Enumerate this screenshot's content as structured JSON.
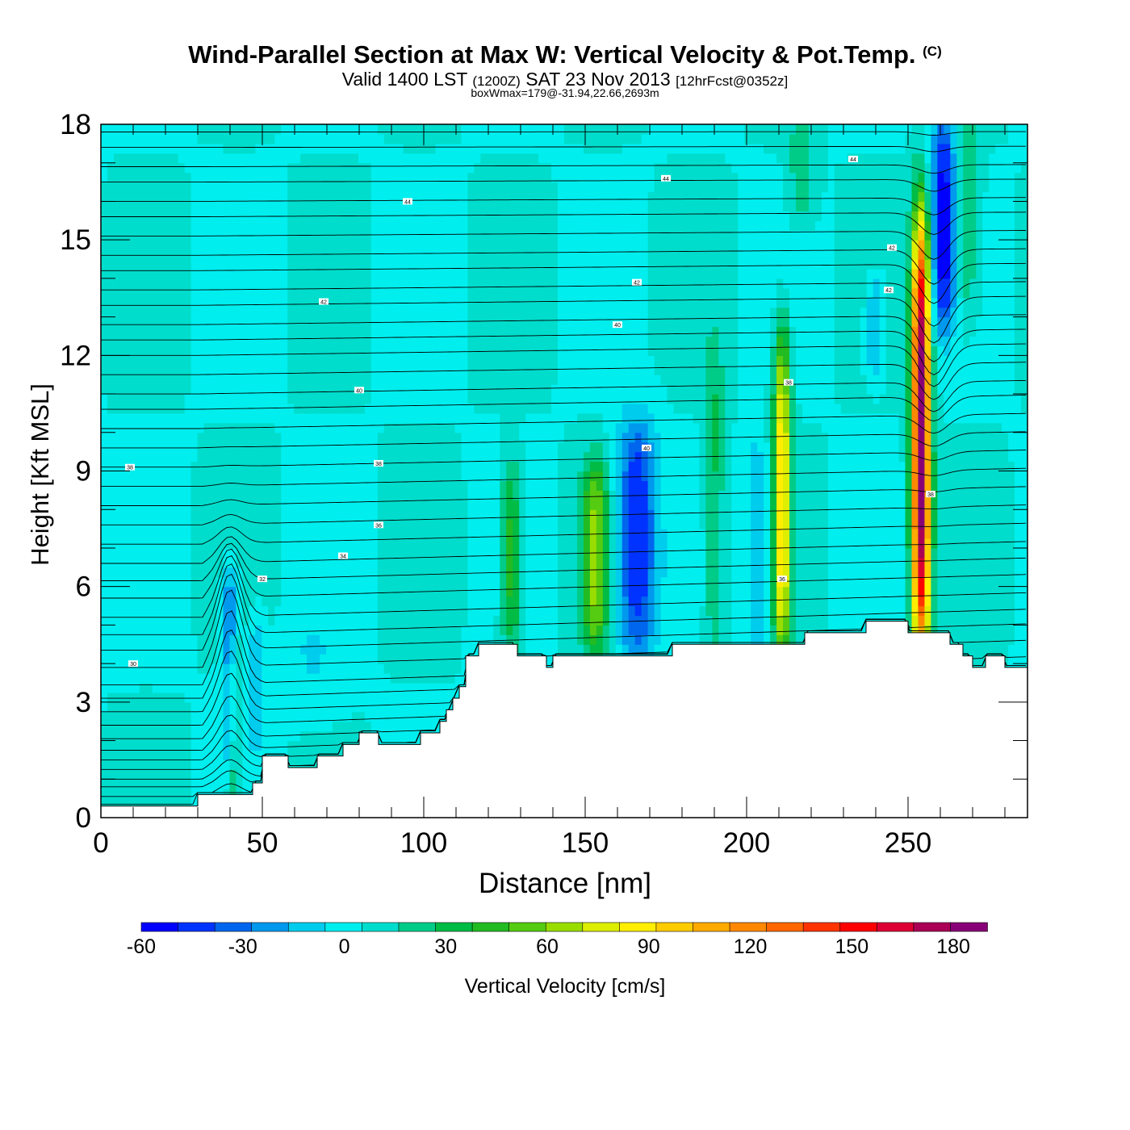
{
  "title": {
    "main": "Wind-Parallel Section at Max W: Vertical Velocity & Pot.Temp.",
    "copyright": "(C)",
    "valid_prefix": "Valid 1400 LST",
    "valid_zulu": "(1200Z)",
    "valid_date": "SAT 23 Nov 2013",
    "forecast": "[12hrFcst@0352z]",
    "box_wmax": "boxWmax=179@-31.94,22.66,2693m"
  },
  "chart_data": {
    "type": "heatmap",
    "xlabel": "Distance [nm]",
    "ylabel": "Height [Kft MSL]",
    "xlim": [
      0,
      287
    ],
    "ylim": [
      0,
      18
    ],
    "x_ticks": [
      "0",
      "50",
      "100",
      "150",
      "200",
      "250"
    ],
    "y_ticks": [
      "0",
      "3",
      "6",
      "9",
      "12",
      "15",
      "18"
    ],
    "colorbar": {
      "label": "Vertical Velocity [cm/s]",
      "tick_values": [
        -60,
        -30,
        0,
        30,
        60,
        90,
        120,
        150,
        180
      ],
      "tick_labels": [
        "-60",
        "-30",
        "0",
        "30",
        "60",
        "90",
        "120",
        "150",
        "180"
      ],
      "range": [
        -60,
        190
      ],
      "colors": [
        "#0000ff",
        "#0033ff",
        "#0066ee",
        "#0099ee",
        "#00ccee",
        "#00eeee",
        "#00ddcc",
        "#00cc88",
        "#00bb44",
        "#22bb22",
        "#55cc11",
        "#99dd00",
        "#ddee00",
        "#ffee00",
        "#ffcc00",
        "#ffaa00",
        "#ff8800",
        "#ff6600",
        "#ff3300",
        "#ff0000",
        "#dd0033",
        "#aa0055",
        "#880077"
      ]
    },
    "background_w": 5,
    "w_features": [
      {
        "x": 40,
        "y0": 1.5,
        "y1": 6.2,
        "w": -45,
        "width": 2.5
      },
      {
        "x": 41,
        "y0": 0.5,
        "y1": 4.5,
        "w": 35,
        "width": 2.5
      },
      {
        "x": 48,
        "y0": 2.0,
        "y1": 5.2,
        "w": -20,
        "width": 2.5
      },
      {
        "x": 65,
        "y0": 2.5,
        "y1": 5.0,
        "w": -10,
        "width": 10
      },
      {
        "x": 127,
        "y0": 4.5,
        "y1": 9.0,
        "w": 40,
        "width": 3
      },
      {
        "x": 153,
        "y0": 4.5,
        "y1": 9.0,
        "w": 55,
        "width": 4
      },
      {
        "x": 166,
        "y0": 4.5,
        "y1": 10.0,
        "w": -55,
        "width": 6
      },
      {
        "x": 190,
        "y0": 4.5,
        "y1": 12.0,
        "w": 25,
        "width": 3
      },
      {
        "x": 203,
        "y0": 4.5,
        "y1": 9.5,
        "w": -25,
        "width": 3
      },
      {
        "x": 211,
        "y0": 4.5,
        "y1": 12.2,
        "w": 85,
        "width": 2.5
      },
      {
        "x": 240,
        "y0": 11.5,
        "y1": 14.0,
        "w": -25,
        "width": 3
      },
      {
        "x": 254,
        "y0": 4.8,
        "y1": 15.0,
        "w": 179,
        "width": 2.8
      },
      {
        "x": 261,
        "y0": 13.0,
        "y1": 18.0,
        "w": -60,
        "width": 4
      },
      {
        "x": 217,
        "y0": 15.5,
        "y1": 18.0,
        "w": 20,
        "width": 4
      },
      {
        "x": 268,
        "y0": 13.0,
        "y1": 18.0,
        "w": 25,
        "width": 4
      }
    ],
    "terrain": [
      [
        0,
        0.3
      ],
      [
        30,
        0.3
      ],
      [
        30,
        0.6
      ],
      [
        47,
        0.6
      ],
      [
        47,
        0.9
      ],
      [
        50,
        0.9
      ],
      [
        50,
        1.6
      ],
      [
        58,
        1.6
      ],
      [
        58,
        1.3
      ],
      [
        67,
        1.3
      ],
      [
        67,
        1.6
      ],
      [
        75,
        1.6
      ],
      [
        75,
        1.9
      ],
      [
        80,
        1.9
      ],
      [
        80,
        2.2
      ],
      [
        86,
        2.2
      ],
      [
        86,
        1.9
      ],
      [
        99,
        1.9
      ],
      [
        99,
        2.2
      ],
      [
        105,
        2.2
      ],
      [
        105,
        2.5
      ],
      [
        107,
        2.5
      ],
      [
        107,
        2.8
      ],
      [
        109,
        2.8
      ],
      [
        109,
        3.1
      ],
      [
        111,
        3.1
      ],
      [
        111,
        3.4
      ],
      [
        113,
        3.4
      ],
      [
        113,
        4.2
      ],
      [
        117,
        4.2
      ],
      [
        117,
        4.5
      ],
      [
        129,
        4.5
      ],
      [
        129,
        4.2
      ],
      [
        138,
        4.2
      ],
      [
        138,
        3.9
      ],
      [
        140,
        3.9
      ],
      [
        140,
        4.2
      ],
      [
        177,
        4.2
      ],
      [
        177,
        4.5
      ],
      [
        218,
        4.5
      ],
      [
        218,
        4.8
      ],
      [
        237,
        4.8
      ],
      [
        237,
        5.1
      ],
      [
        250,
        5.1
      ],
      [
        250,
        4.8
      ],
      [
        263,
        4.8
      ],
      [
        263,
        4.5
      ],
      [
        267,
        4.5
      ],
      [
        267,
        4.2
      ],
      [
        270,
        4.2
      ],
      [
        270,
        3.9
      ],
      [
        274,
        3.9
      ],
      [
        274,
        4.2
      ],
      [
        280,
        4.2
      ],
      [
        280,
        3.9
      ],
      [
        287,
        3.9
      ]
    ],
    "theta_levels_left_y": [
      0.35,
      0.55,
      0.8,
      1.0,
      1.25,
      1.5,
      1.75,
      2.05,
      2.4,
      2.75,
      3.1,
      3.45,
      3.9,
      4.35,
      4.75,
      5.2,
      5.7,
      6.15,
      6.6,
      7.1,
      7.6,
      8.1,
      8.6,
      9.1,
      9.6,
      10.1,
      10.6,
      11.0,
      11.5,
      12.0,
      12.4,
      12.8,
      13.3,
      13.7,
      14.2,
      14.6,
      15.1,
      15.6,
      16.0,
      16.5,
      16.9,
      17.4,
      17.8
    ],
    "theta_labels": [
      {
        "x": 10,
        "y": 4.0,
        "text": "30"
      },
      {
        "x": 50,
        "y": 6.2,
        "text": "32"
      },
      {
        "x": 75,
        "y": 6.8,
        "text": "34"
      },
      {
        "x": 86,
        "y": 7.6,
        "text": "36"
      },
      {
        "x": 9,
        "y": 9.1,
        "text": "38"
      },
      {
        "x": 86,
        "y": 9.2,
        "text": "38"
      },
      {
        "x": 80,
        "y": 11.1,
        "text": "40"
      },
      {
        "x": 160,
        "y": 12.8,
        "text": "40"
      },
      {
        "x": 169,
        "y": 9.6,
        "text": "40"
      },
      {
        "x": 69,
        "y": 13.4,
        "text": "42"
      },
      {
        "x": 166,
        "y": 13.9,
        "text": "42"
      },
      {
        "x": 244,
        "y": 13.7,
        "text": "42"
      },
      {
        "x": 245,
        "y": 14.8,
        "text": "42"
      },
      {
        "x": 95,
        "y": 16.0,
        "text": "44"
      },
      {
        "x": 175,
        "y": 16.6,
        "text": "44"
      },
      {
        "x": 233,
        "y": 17.1,
        "text": "44"
      },
      {
        "x": 213,
        "y": 11.3,
        "text": "38"
      },
      {
        "x": 211,
        "y": 6.2,
        "text": "36"
      },
      {
        "x": 257,
        "y": 8.4,
        "text": "38"
      }
    ]
  }
}
